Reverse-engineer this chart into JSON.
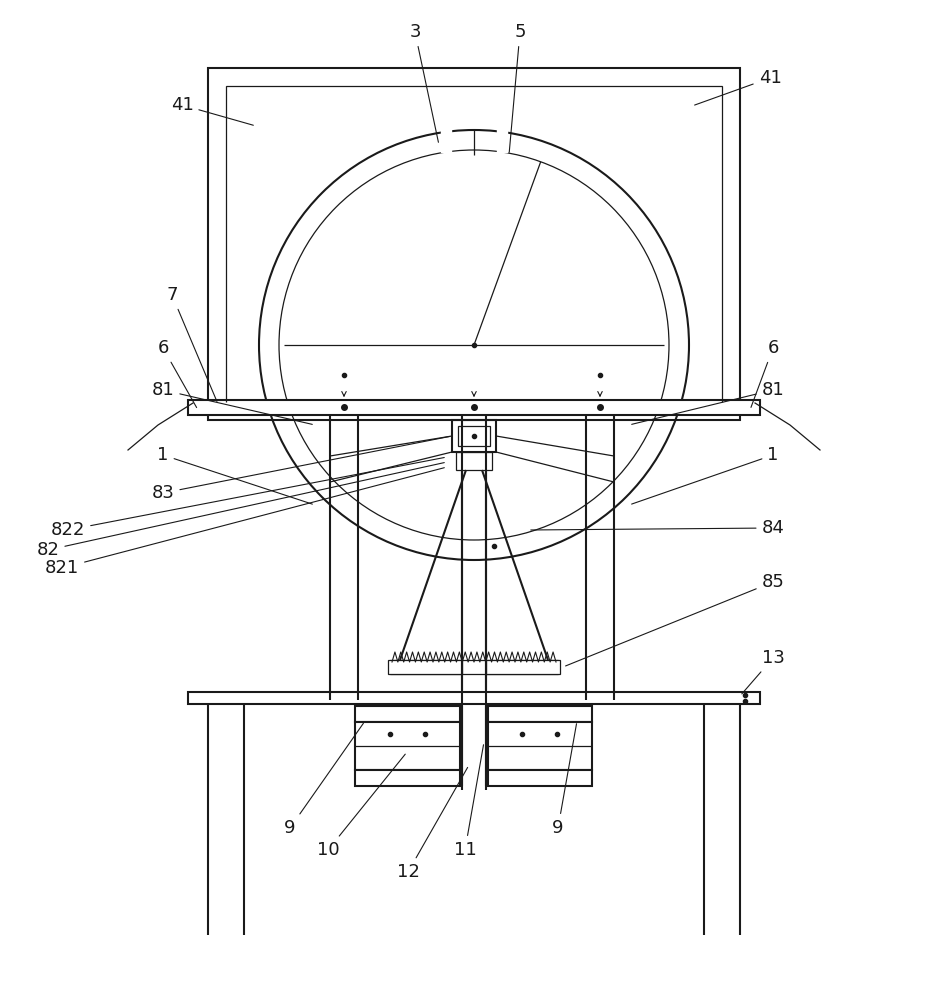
{
  "bg_color": "#ffffff",
  "lc": "#1a1a1a",
  "lw": 1.5,
  "tlw": 0.9,
  "fs": 13
}
